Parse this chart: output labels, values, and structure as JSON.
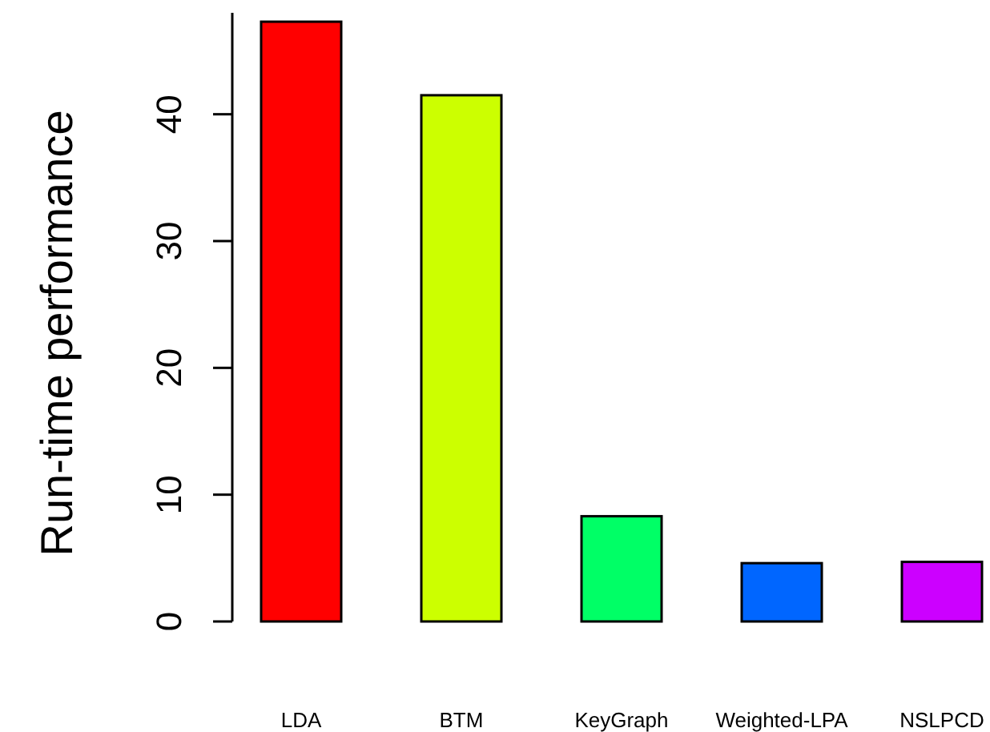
{
  "chart_data": {
    "type": "bar",
    "ylabel": "Run-time performance",
    "categories": [
      "LDA",
      "BTM",
      "KeyGraph",
      "Weighted-LPA",
      "NSLPCD"
    ],
    "values": [
      47.3,
      41.5,
      8.3,
      4.6,
      4.7
    ],
    "colors": [
      "#ff0000",
      "#ccff00",
      "#00ff66",
      "#0066ff",
      "#cc00ff"
    ],
    "ylim": [
      0,
      48
    ],
    "yticks": [
      0,
      10,
      20,
      30,
      40
    ],
    "grid": false
  }
}
